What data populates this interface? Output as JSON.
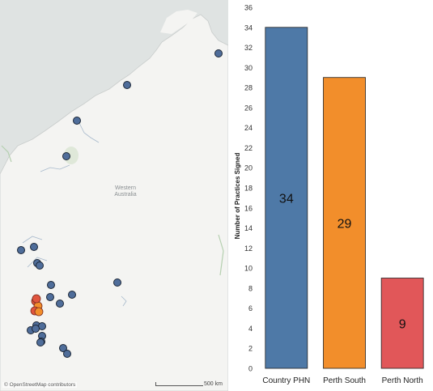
{
  "map": {
    "attribution": "© OpenStreetMap contributors",
    "scale_label": "500 km",
    "region_label_line1": "Western",
    "region_label_line2": "Australia",
    "land_color": "#f4f4f2",
    "water_color": "#dfe3e2",
    "marker_color": "#4f6d9a",
    "cluster_color": "#e0553e"
  },
  "chart_data": {
    "type": "bar",
    "categories": [
      "Country PHN",
      "Perth South",
      "Perth North"
    ],
    "values": [
      34,
      29,
      9
    ],
    "colors": [
      "#4e79a7",
      "#f28e2b",
      "#e15759"
    ],
    "title": "",
    "xlabel": "",
    "ylabel": "Number of Practices Signed",
    "ylim": [
      0,
      36
    ],
    "yticks": [
      0,
      2,
      4,
      6,
      8,
      10,
      12,
      14,
      16,
      18,
      20,
      22,
      24,
      26,
      28,
      30,
      32,
      34,
      36
    ],
    "grid": false,
    "data_labels": [
      "34",
      "29",
      "9"
    ]
  }
}
